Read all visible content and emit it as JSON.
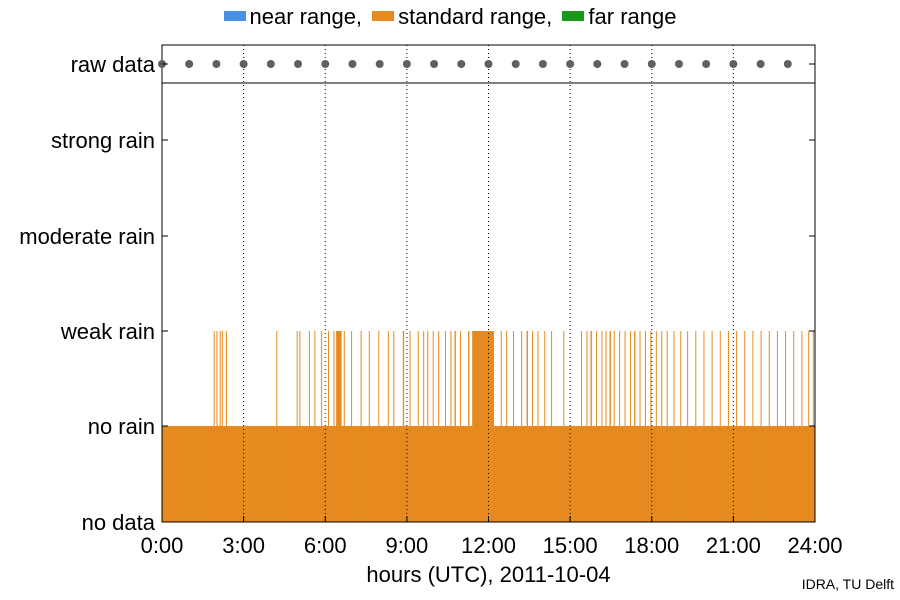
{
  "chart_data": {
    "type": "bar",
    "title": "",
    "xlabel": "hours (UTC), 2011-10-04",
    "ylabel": "",
    "xlim": [
      0,
      24
    ],
    "x_ticks": [
      "0:00",
      "3:00",
      "6:00",
      "9:00",
      "12:00",
      "15:00",
      "18:00",
      "21:00",
      "24:00"
    ],
    "y_categories": [
      "no data",
      "no rain",
      "weak rain",
      "moderate rain",
      "strong rain",
      "raw data"
    ],
    "grid": "vertical dotted lines at 3-hour intervals",
    "legend": {
      "placement": "top",
      "entries": [
        {
          "label": "near range,",
          "color": "#4a90e2"
        },
        {
          "label": "standard range,",
          "color": "#e6891e"
        },
        {
          "label": "far range",
          "color": "#1a9a1a"
        }
      ]
    },
    "series": [
      {
        "name": "standard range",
        "color": "#e6891e",
        "baseline_level": "no rain",
        "baseline_interval_hours": [
          0,
          24
        ],
        "weak_rain_intervals_hours": [
          [
            1.9,
            1.93
          ],
          [
            2.0,
            2.03
          ],
          [
            2.12,
            2.15
          ],
          [
            2.2,
            2.23
          ],
          [
            2.35,
            2.38
          ],
          [
            4.2,
            4.23
          ],
          [
            4.95,
            4.98
          ],
          [
            5.05,
            5.08
          ],
          [
            5.4,
            5.43
          ],
          [
            5.6,
            5.63
          ],
          [
            5.85,
            5.88
          ],
          [
            6.1,
            6.13
          ],
          [
            6.3,
            6.33
          ],
          [
            6.4,
            6.6
          ],
          [
            6.68,
            6.71
          ],
          [
            6.95,
            6.98
          ],
          [
            7.3,
            7.33
          ],
          [
            7.6,
            7.63
          ],
          [
            7.95,
            7.98
          ],
          [
            8.3,
            8.33
          ],
          [
            8.5,
            8.53
          ],
          [
            8.85,
            8.9
          ],
          [
            9.1,
            9.13
          ],
          [
            9.4,
            9.43
          ],
          [
            9.6,
            9.63
          ],
          [
            9.75,
            9.78
          ],
          [
            9.95,
            9.98
          ],
          [
            10.15,
            10.18
          ],
          [
            10.4,
            10.43
          ],
          [
            10.6,
            10.63
          ],
          [
            10.75,
            10.8
          ],
          [
            10.95,
            10.98
          ],
          [
            11.25,
            11.3
          ],
          [
            11.4,
            12.2
          ],
          [
            12.45,
            12.48
          ],
          [
            12.65,
            12.68
          ],
          [
            12.9,
            12.93
          ],
          [
            13.2,
            13.23
          ],
          [
            13.4,
            13.45
          ],
          [
            13.6,
            13.63
          ],
          [
            13.8,
            13.83
          ],
          [
            14.05,
            14.08
          ],
          [
            14.3,
            14.33
          ],
          [
            14.75,
            14.78
          ],
          [
            15.4,
            15.43
          ],
          [
            15.6,
            15.63
          ],
          [
            15.75,
            15.8
          ],
          [
            15.95,
            15.98
          ],
          [
            16.15,
            16.18
          ],
          [
            16.3,
            16.33
          ],
          [
            16.45,
            16.5
          ],
          [
            16.6,
            16.63
          ],
          [
            16.8,
            16.83
          ],
          [
            17.0,
            17.03
          ],
          [
            17.2,
            17.23
          ],
          [
            17.35,
            17.4
          ],
          [
            17.55,
            17.58
          ],
          [
            17.75,
            17.78
          ],
          [
            17.95,
            17.98
          ],
          [
            18.15,
            18.18
          ],
          [
            18.35,
            18.38
          ],
          [
            18.55,
            18.58
          ],
          [
            18.8,
            18.83
          ],
          [
            19.05,
            19.08
          ],
          [
            19.3,
            19.33
          ],
          [
            19.6,
            19.63
          ],
          [
            19.9,
            19.93
          ],
          [
            20.2,
            20.23
          ],
          [
            20.5,
            20.53
          ],
          [
            20.8,
            20.83
          ],
          [
            21.1,
            21.13
          ],
          [
            21.4,
            21.43
          ],
          [
            21.7,
            21.73
          ],
          [
            22.0,
            22.03
          ],
          [
            22.3,
            22.33
          ],
          [
            22.6,
            22.63
          ],
          [
            22.9,
            22.93
          ],
          [
            23.2,
            23.23
          ],
          [
            23.5,
            23.53
          ],
          [
            23.75,
            23.78
          ],
          [
            23.92,
            23.95
          ]
        ]
      }
    ],
    "raw_data_times_hours": [
      0,
      1,
      2,
      3,
      4,
      5,
      6,
      7,
      8,
      9,
      10,
      11,
      12,
      13,
      14,
      15,
      16,
      17,
      18,
      19,
      20,
      21,
      22,
      23
    ],
    "raw_data_color": "#606060"
  },
  "credit": "IDRA, TU Delft"
}
